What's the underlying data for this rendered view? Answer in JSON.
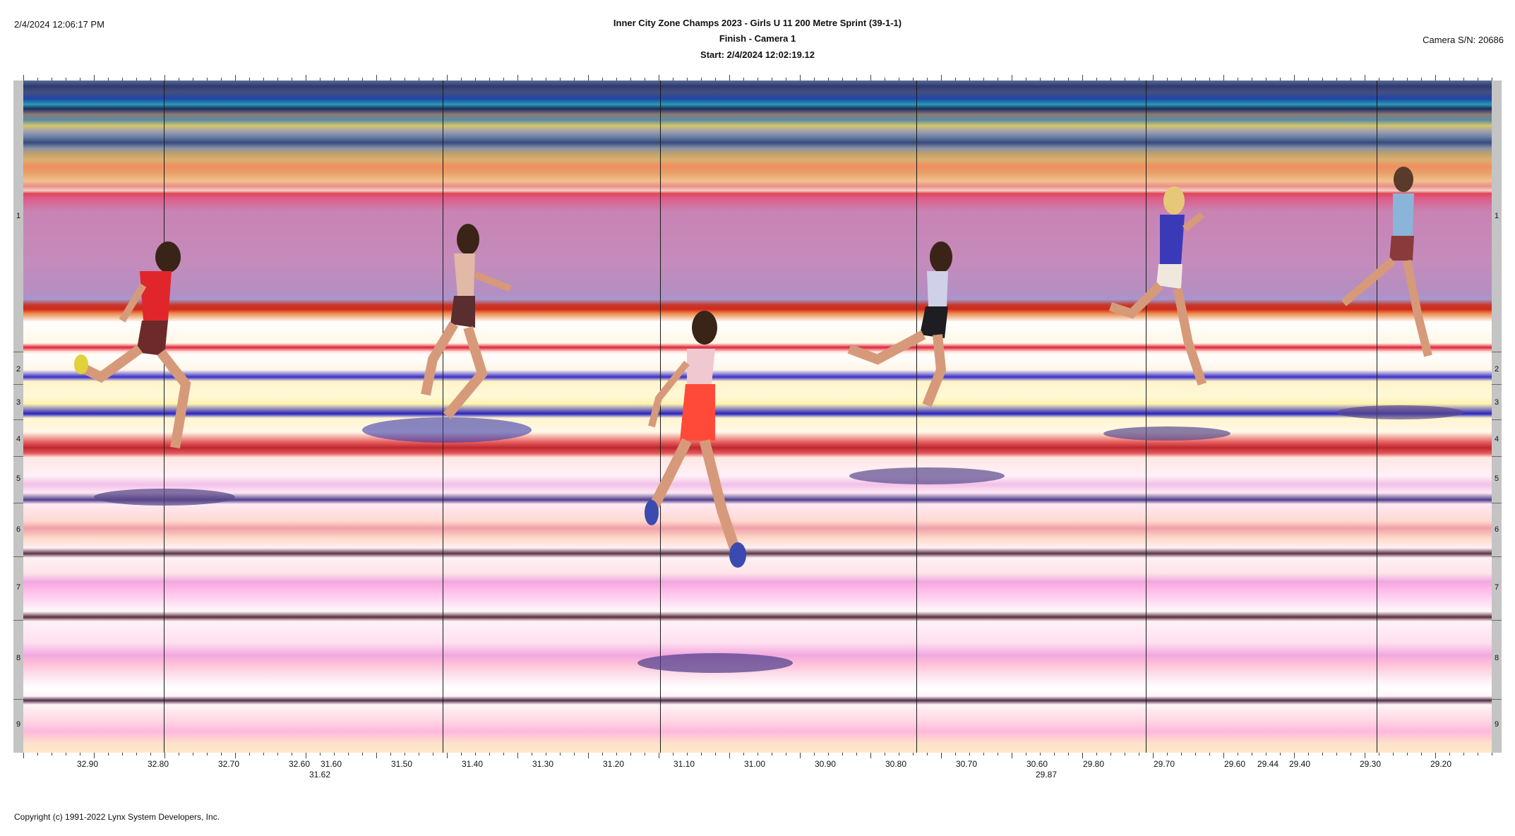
{
  "header": {
    "timestamp": "2/4/2024 12:06:17 PM",
    "title": "Inner City Zone Champs 2023 - Girls U 11 200 Metre Sprint (39-1-1)",
    "subtitle": "Finish - Camera 1",
    "start": "Start: 2/4/2024 12:02:19.12",
    "camera_sn": "Camera S/N: 20686"
  },
  "lanes": [
    "1",
    "2",
    "3",
    "4",
    "5",
    "6",
    "7",
    "8",
    "9"
  ],
  "time_scale": {
    "labels": [
      "32.90",
      "32.80",
      "32.70",
      "32.60",
      "31.60",
      "31.50",
      "31.40",
      "31.30",
      "31.20",
      "31.10",
      "31.00",
      "30.90",
      "30.80",
      "30.70",
      "30.60",
      "29.80",
      "29.70",
      "29.60",
      "29.44",
      "29.40",
      "29.30",
      "29.20"
    ],
    "sub_labels": [
      "31.62",
      "29.87"
    ]
  },
  "footer": {
    "copyright": "Copyright (c) 1991-2022 Lynx System Developers, Inc."
  },
  "colors": {
    "lane_bar": "#c4c4c4",
    "finish_line": "#1a1a1a"
  }
}
